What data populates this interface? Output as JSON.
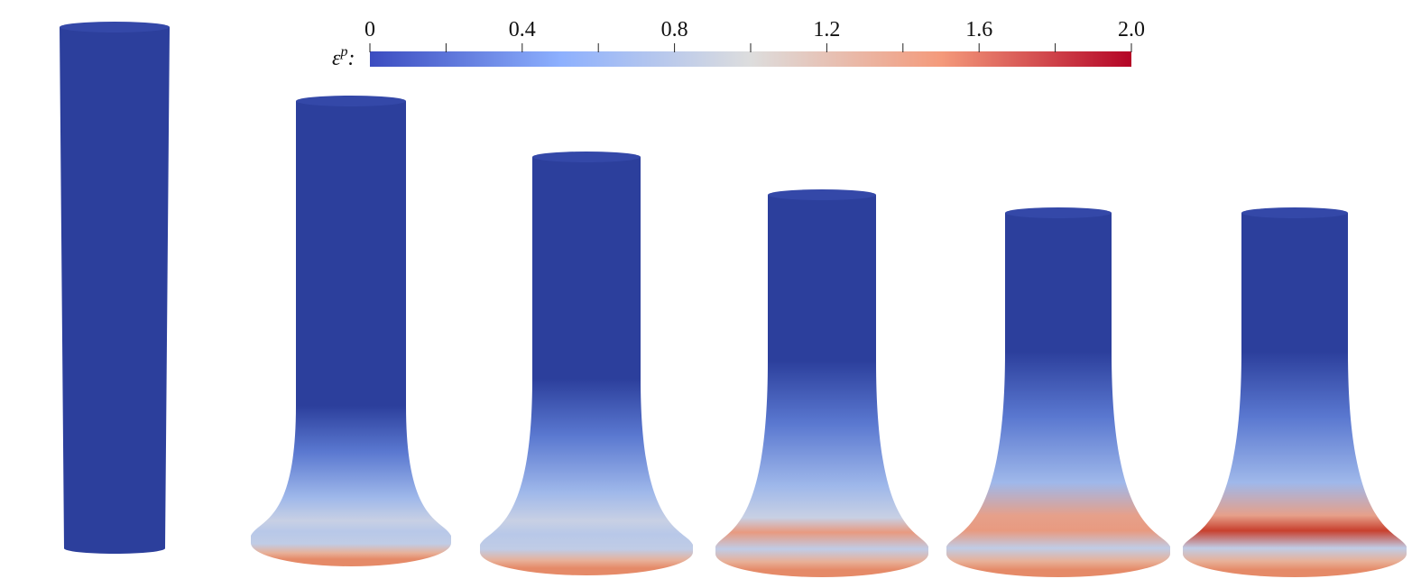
{
  "colorbar": {
    "label": "ε",
    "label_sup": "p",
    "label_suffix": ":",
    "clim": [
      0,
      2
    ],
    "ticks": [
      0,
      0.4,
      0.8,
      1.2,
      1.6,
      {
        "value": 2,
        "label": "2.0"
      }
    ],
    "minor_ticks": [
      0.2,
      0.6,
      1.0,
      1.4,
      1.8
    ],
    "colors": [
      "#3b4cc0",
      "#8db0fe",
      "#dddddd",
      "#f49a7b",
      "#b40426"
    ]
  }
}
